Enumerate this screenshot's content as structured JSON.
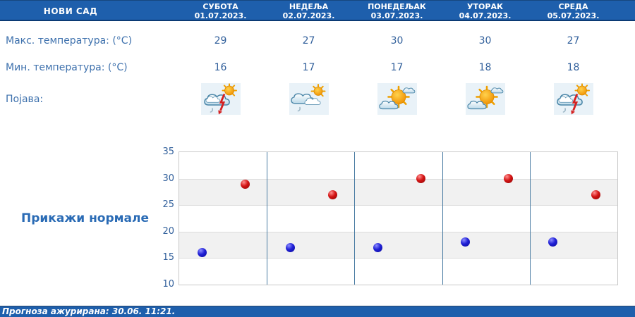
{
  "header": {
    "location": "НОВИ САД",
    "days": [
      {
        "name": "СУБОТА",
        "date": "01.07.2023."
      },
      {
        "name": "НЕДЕЉА",
        "date": "02.07.2023."
      },
      {
        "name": "ПОНЕДЕЉАК",
        "date": "03.07.2023."
      },
      {
        "name": "УТОРАК",
        "date": "04.07.2023."
      },
      {
        "name": "СРЕДА",
        "date": "05.07.2023."
      }
    ]
  },
  "rows": {
    "max_label": "Макс. температура: (°C)",
    "min_label": "Мин. температура: (°C)",
    "phenomena_label": "Појава:",
    "max_values": [
      "29",
      "27",
      "30",
      "30",
      "27"
    ],
    "min_values": [
      "16",
      "17",
      "17",
      "18",
      "18"
    ],
    "icons": [
      "thunderstorm-icon",
      "rain-sun-icon",
      "partly-sunny-icon",
      "partly-sunny-icon",
      "thunderstorm-icon"
    ]
  },
  "normals_button": "Прикажи нормале",
  "chart_data": {
    "type": "scatter",
    "categories": [
      "СУБОТА",
      "НЕДЕЉА",
      "ПОНЕДЕЉАК",
      "УТОРАК",
      "СРЕДА"
    ],
    "series": [
      {
        "name": "Макс. температура",
        "color": "#d41414",
        "values": [
          29,
          27,
          30,
          30,
          27
        ]
      },
      {
        "name": "Мин. температура",
        "color": "#2020d6",
        "values": [
          16,
          17,
          17,
          18,
          18
        ]
      }
    ],
    "ylim": [
      10,
      35
    ],
    "yticks": [
      10,
      15,
      20,
      25,
      30,
      35
    ],
    "gray_bands": [
      [
        15,
        20
      ],
      [
        25,
        30
      ]
    ],
    "grid": true,
    "legend": "none"
  },
  "footer": {
    "updated_text": "Прогноза ажурирана:  30.06. 11:21."
  },
  "colors": {
    "header_bar": "#1e5fac",
    "label_text": "#3e71ad",
    "value_text": "#33619c",
    "separator": "#4a7ca3",
    "band": "#f1f1f1",
    "icon_cell_bg": "#e9f2f8"
  }
}
